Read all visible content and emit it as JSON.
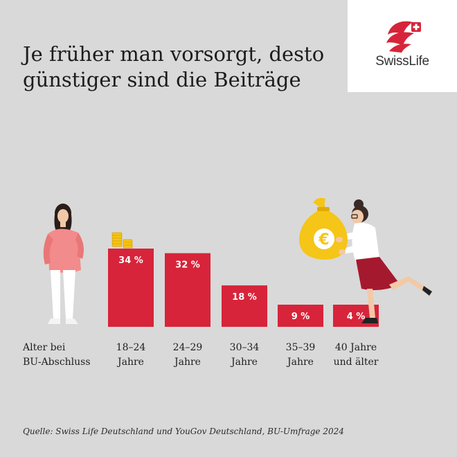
{
  "title": {
    "line1": "Je früher man vorsorgt, desto",
    "line2": "günstiger sind die Beiträge"
  },
  "logo": {
    "text": "SwissLife",
    "icon": "swisslife-flag-logo"
  },
  "axis_label": {
    "line1": "Alter bei",
    "line2": "BU-Abschluss"
  },
  "chart_data": {
    "type": "bar",
    "categories": [
      "18–24 Jahre",
      "24–29 Jahre",
      "30–34 Jahre",
      "35–39 Jahre",
      "40 Jahre und älter"
    ],
    "category_lines": [
      [
        "18–24",
        "Jahre"
      ],
      [
        "24–29",
        "Jahre"
      ],
      [
        "30–34",
        "Jahre"
      ],
      [
        "35–39",
        "Jahre"
      ],
      [
        "40 Jahre",
        "und älter"
      ]
    ],
    "values": [
      34,
      32,
      18,
      9,
      4
    ],
    "value_labels": [
      "34 %",
      "32 %",
      "18 %",
      "9 %",
      "4 %"
    ],
    "bar_color": "#d7243a",
    "ylim": [
      0,
      34
    ]
  },
  "source": "Quelle: Swiss Life Deutschland und YouGov Deutschland, BU-Umfrage 2024",
  "icons": {
    "left_figure": "young-woman-standing-icon",
    "coins": "coin-stack-icon",
    "right_figure": "woman-with-money-bag-icon",
    "money_bag": "euro-money-bag-icon"
  },
  "colors": {
    "background": "#d9d9d9",
    "accent_red": "#d7243a",
    "bag_yellow": "#f5c518"
  }
}
